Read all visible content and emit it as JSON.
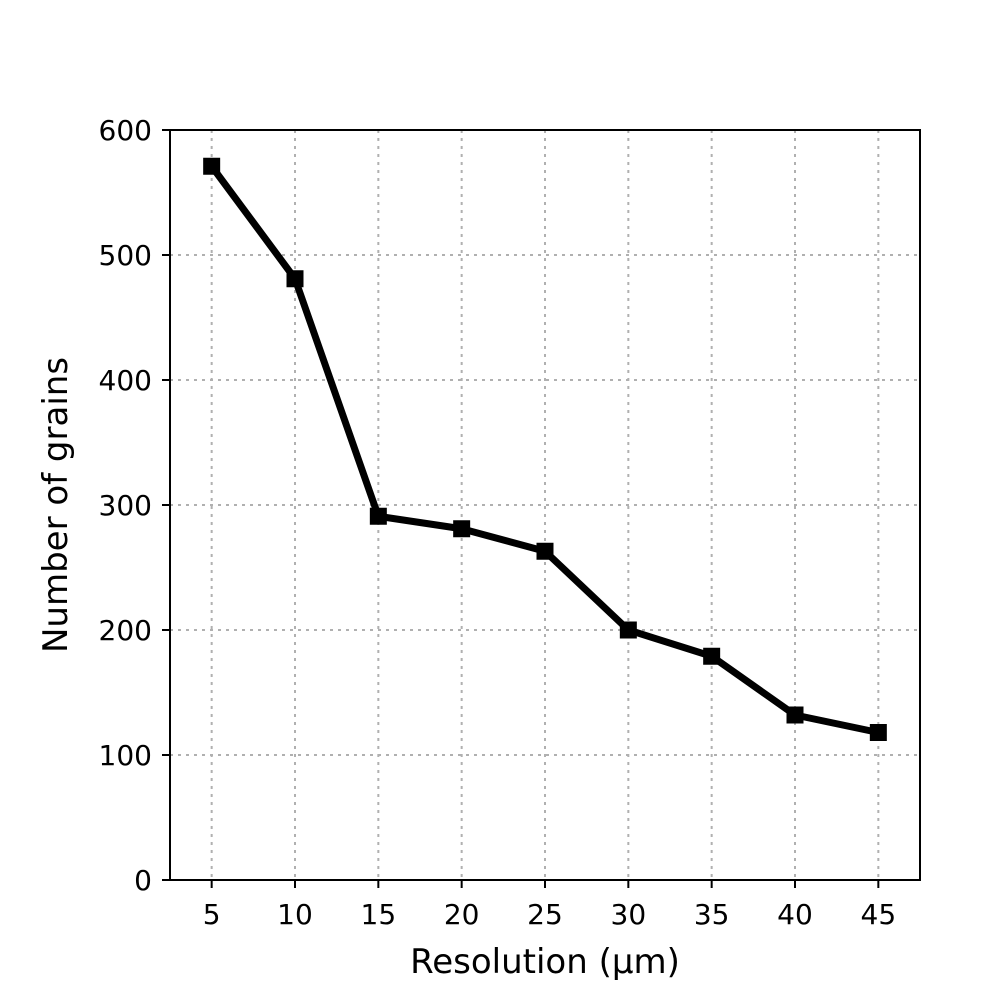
{
  "chart_data": {
    "type": "line",
    "title": "",
    "xlabel": "Resolution (μm)",
    "ylabel": "Number of grains",
    "x": [
      5,
      10,
      15,
      20,
      25,
      30,
      35,
      40,
      45
    ],
    "xticks": [
      5,
      10,
      15,
      20,
      25,
      30,
      35,
      40,
      45
    ],
    "xlim": [
      2.5,
      47.5
    ],
    "ylim": [
      0,
      600
    ],
    "yticks": [
      0,
      100,
      200,
      300,
      400,
      500,
      600
    ],
    "grid": true,
    "series": [
      {
        "values": [
          571,
          481,
          291,
          281,
          263,
          200,
          179,
          132,
          118
        ],
        "color": "#000000",
        "marker": "square"
      }
    ]
  }
}
